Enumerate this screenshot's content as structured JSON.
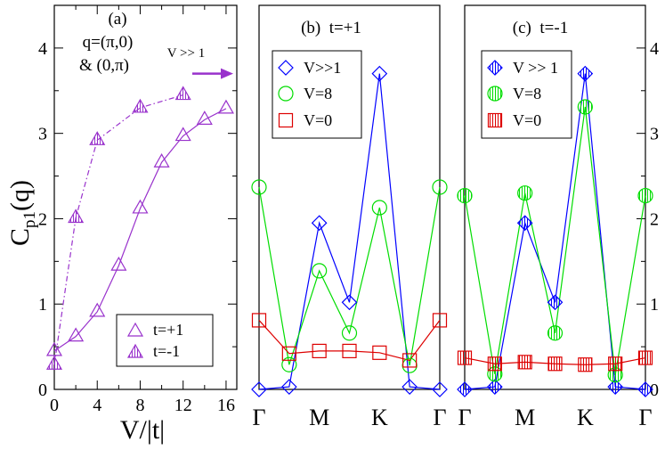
{
  "colors": {
    "purple": "#9932cc",
    "blue": "#0000ff",
    "green": "#00dd00",
    "red": "#dd0000",
    "axis": "#000000"
  },
  "chart_data": [
    {
      "id": "a",
      "type": "line",
      "panel_label": "(a)",
      "annotation": {
        "line1": "q=(π,0)",
        "line2": "& (0,π)"
      },
      "arrow_label": "V >> 1",
      "arrow_value": 3.7,
      "xlabel": "V/|t|",
      "ylabel_main": "C",
      "ylabel_sub": "p1",
      "ylabel_tail": "(q)",
      "xlim": [
        0,
        17
      ],
      "ylim": [
        0,
        4.5
      ],
      "xticks": [
        0,
        4,
        8,
        12,
        16
      ],
      "yticks": [
        0,
        1,
        2,
        3,
        4
      ],
      "series": [
        {
          "name": "t=+1",
          "style": "solid",
          "marker": "triangle",
          "x": [
            0,
            2,
            4,
            6,
            8,
            10,
            12,
            14,
            16
          ],
          "y": [
            0.45,
            0.62,
            0.91,
            1.45,
            2.12,
            2.66,
            2.97,
            3.16,
            3.29
          ]
        },
        {
          "name": "t=-1",
          "style": "dashdot",
          "marker": "triangle-hatched",
          "x": [
            0,
            2,
            4,
            8,
            12
          ],
          "y": [
            0.29,
            2.01,
            2.92,
            3.3,
            3.45
          ]
        }
      ],
      "legend": [
        {
          "label": "t=+1"
        },
        {
          "label": "t=-1"
        }
      ]
    },
    {
      "id": "b",
      "type": "line",
      "panel_label": "(b)  t=+1",
      "categories": [
        "Γ",
        "",
        "M",
        "",
        "K",
        "",
        "Γ"
      ],
      "ylim": [
        0,
        4.5
      ],
      "series": [
        {
          "name": "V>>1",
          "marker": "diamond",
          "color": "blue",
          "x": [
            0,
            1,
            2,
            3,
            4,
            5,
            6
          ],
          "y": [
            0.0,
            0.03,
            1.95,
            1.02,
            3.7,
            0.03,
            0.0
          ]
        },
        {
          "name": "V=8",
          "marker": "circle",
          "color": "green",
          "x": [
            0,
            1,
            2,
            3,
            4,
            5,
            6
          ],
          "y": [
            2.37,
            0.29,
            1.39,
            0.66,
            2.13,
            0.28,
            2.37
          ]
        },
        {
          "name": "V=0",
          "marker": "square",
          "color": "red",
          "x": [
            0,
            1,
            2,
            3,
            4,
            5,
            6
          ],
          "y": [
            0.81,
            0.42,
            0.45,
            0.45,
            0.43,
            0.34,
            0.81
          ]
        }
      ],
      "legend": [
        {
          "label": "V>>1"
        },
        {
          "label": "V=8"
        },
        {
          "label": "V=0"
        }
      ]
    },
    {
      "id": "c",
      "type": "line",
      "panel_label": "(c)  t=-1",
      "categories": [
        "Γ",
        "",
        "M",
        "",
        "K",
        "",
        "Γ"
      ],
      "ylim": [
        0,
        4.5
      ],
      "yticks": [
        0,
        1,
        2,
        3,
        4
      ],
      "series": [
        {
          "name": "V >> 1",
          "marker": "diamond-hatched",
          "color": "blue",
          "x": [
            0,
            1,
            2,
            3,
            4,
            5,
            6
          ],
          "y": [
            0.0,
            0.03,
            1.95,
            1.02,
            3.7,
            0.03,
            0.0
          ]
        },
        {
          "name": "V=8",
          "marker": "circle-hatched",
          "color": "green",
          "x": [
            0,
            1,
            2,
            3,
            4,
            5,
            6
          ],
          "y": [
            2.27,
            0.18,
            2.3,
            0.66,
            3.31,
            0.17,
            2.27
          ]
        },
        {
          "name": "V=0",
          "marker": "square-hatched",
          "color": "red",
          "x": [
            0,
            1,
            2,
            3,
            4,
            5,
            6
          ],
          "y": [
            0.37,
            0.3,
            0.32,
            0.3,
            0.29,
            0.3,
            0.37
          ]
        }
      ],
      "legend": [
        {
          "label": "V >> 1"
        },
        {
          "label": "V=8"
        },
        {
          "label": "V=0"
        }
      ]
    }
  ]
}
